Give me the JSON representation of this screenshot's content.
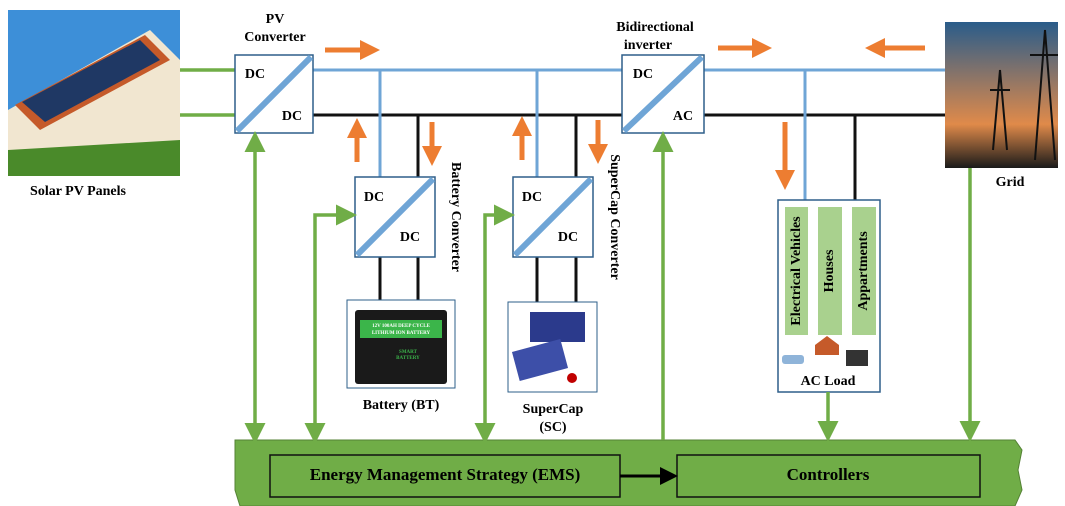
{
  "solar": {
    "label": "Solar PV Panels"
  },
  "pv_converter": {
    "label": [
      "PV",
      "Converter"
    ],
    "top": "DC",
    "bottom": "DC"
  },
  "battery_converter": {
    "label": "Battery Converter",
    "top": "DC",
    "bottom": "DC"
  },
  "supercap_converter": {
    "label": "SuperCap Converter",
    "top": "DC",
    "bottom": "DC"
  },
  "inverter": {
    "label": [
      "Bidirectional",
      "inverter"
    ],
    "top": "DC",
    "bottom": "AC"
  },
  "battery": {
    "label": "Battery (BT)",
    "image_text": [
      "12V 100AH DEEP CYCLE",
      "LITHIUM ION BATTERY",
      "SMART",
      "BATTERY"
    ]
  },
  "supercap": {
    "label": [
      "SuperCap",
      "(SC)"
    ]
  },
  "grid": {
    "label": "Grid"
  },
  "ac_load": {
    "label": "AC Load",
    "loads": [
      "Electrical Vehicles",
      "Houses",
      "Appartments"
    ]
  },
  "ems": {
    "label": "Energy Management  Strategy (EMS)",
    "controllers": "Controllers"
  }
}
